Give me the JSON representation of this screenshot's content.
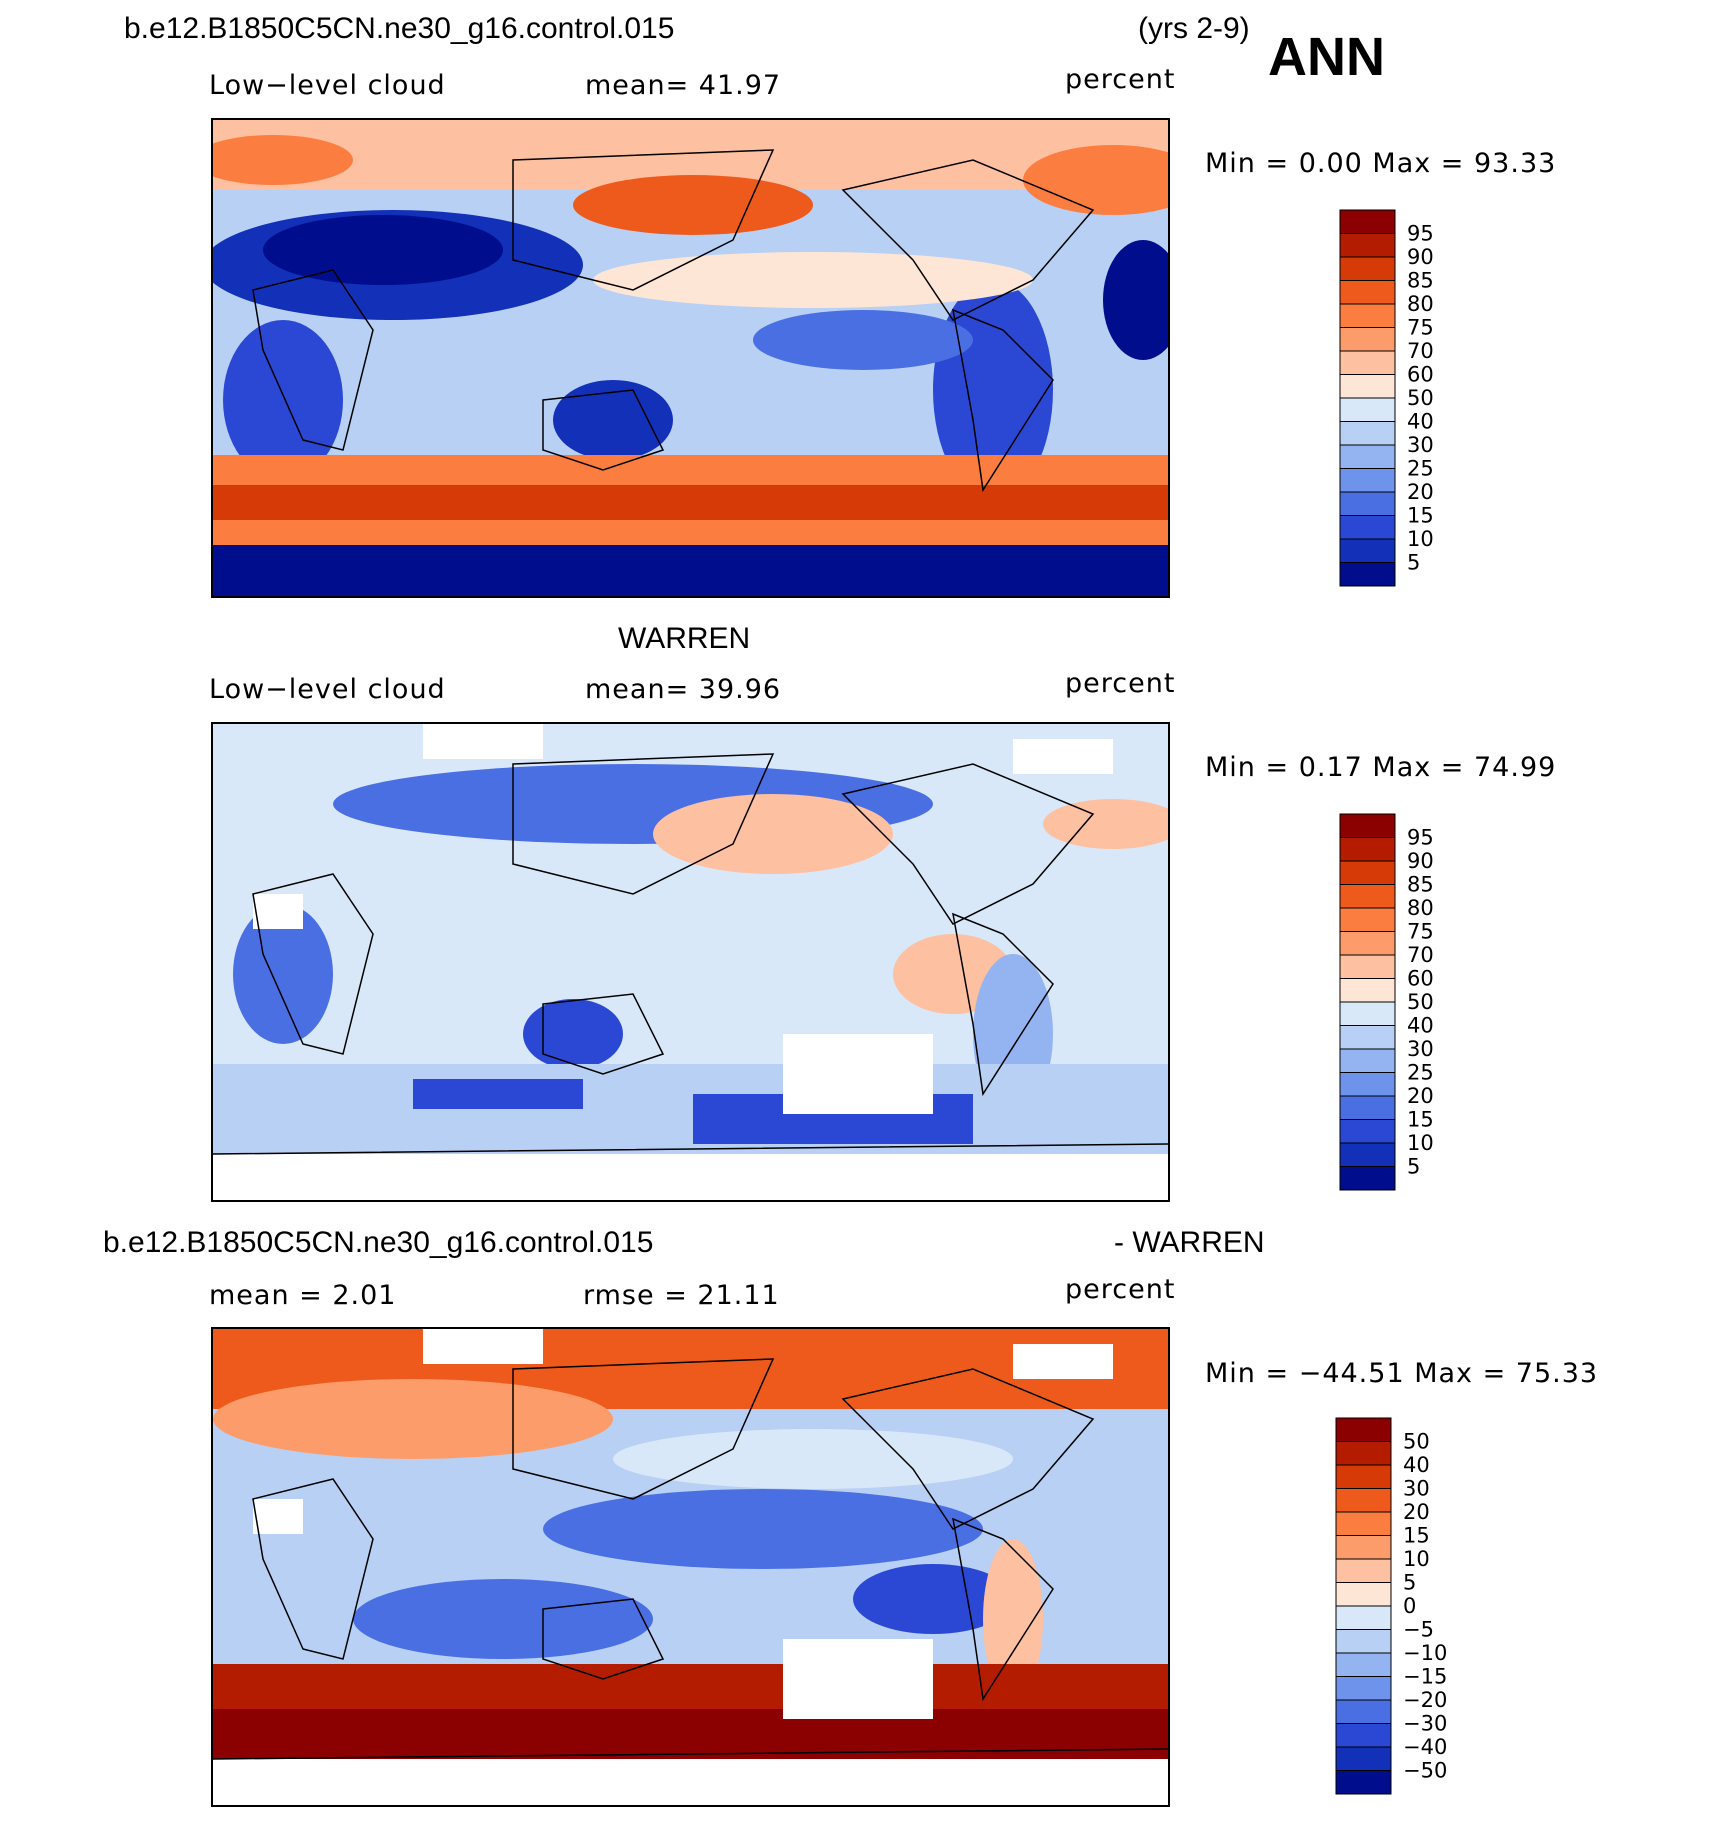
{
  "header": {
    "case_name": "b.e12.B1850C5CN.ne30_g16.control.015",
    "years": "(yrs 2-9)",
    "season": "ANN"
  },
  "panels": [
    {
      "id": "model",
      "heading": "",
      "left_label": "Low−level cloud",
      "mid_label": "mean=   41.97",
      "units": "percent",
      "minmax": "Min  =     0.00  Max  =    93.33"
    },
    {
      "id": "obs",
      "heading": "WARREN",
      "left_label": "Low−level cloud",
      "mid_label": "mean=   39.96",
      "units": "percent",
      "minmax": "Min  =     0.17  Max  =    74.99"
    },
    {
      "id": "diff",
      "heading_left": "b.e12.B1850C5CN.ne30_g16.control.015",
      "heading_right": "- WARREN",
      "left_label": "mean  =    2.01",
      "mid_label": "rmse  =   21.11",
      "units": "percent",
      "minmax": "Min  = −44.51  Max  =    75.33"
    }
  ],
  "chart_data": [
    {
      "type": "heatmap",
      "title": "b.e12.B1850C5CN.ne30_g16.control.015 (yrs 2-9) ANN",
      "variable": "Low-level cloud",
      "units": "percent",
      "mean": 41.97,
      "min": 0.0,
      "max": 93.33,
      "colorbar_levels": [
        95,
        90,
        85,
        80,
        75,
        70,
        60,
        50,
        40,
        30,
        25,
        20,
        15,
        10,
        5
      ],
      "colorbar_colors": [
        "#8b0000",
        "#b41c00",
        "#d63a06",
        "#ee5a1c",
        "#fb7d40",
        "#fc9c6a",
        "#fdc0a0",
        "#fee6d6",
        "#d9e8f8",
        "#b7d0f4",
        "#93b4f0",
        "#6d94ea",
        "#4a6fe2",
        "#2a48d4",
        "#1230b8",
        "#000d8c"
      ],
      "note": "Gridded global map (lon/lat) of annual low-level cloud fraction; individual grid values not labelled."
    },
    {
      "type": "heatmap",
      "title": "WARREN",
      "variable": "Low-level cloud",
      "units": "percent",
      "mean": 39.96,
      "min": 0.17,
      "max": 74.99,
      "colorbar_levels": [
        95,
        90,
        85,
        80,
        75,
        70,
        60,
        50,
        40,
        30,
        25,
        20,
        15,
        10,
        5
      ],
      "colorbar_colors": [
        "#8b0000",
        "#b41c00",
        "#d63a06",
        "#ee5a1c",
        "#fb7d40",
        "#fc9c6a",
        "#fdc0a0",
        "#fee6d6",
        "#d9e8f8",
        "#b7d0f4",
        "#93b4f0",
        "#6d94ea",
        "#4a6fe2",
        "#2a48d4",
        "#1230b8",
        "#000d8c"
      ],
      "note": "Observed (Warren) low-level cloud climatology; white = missing data."
    },
    {
      "type": "heatmap",
      "title": "b.e12.B1850C5CN.ne30_g16.control.015 - WARREN",
      "variable": "Low-level cloud difference",
      "units": "percent",
      "mean": 2.01,
      "rmse": 21.11,
      "min": -44.51,
      "max": 75.33,
      "colorbar_levels": [
        "50",
        "40",
        "30",
        "20",
        "15",
        "10",
        "5",
        "0",
        "−5",
        "−10",
        "−15",
        "−20",
        "−30",
        "−40",
        "−50"
      ],
      "colorbar_colors": [
        "#8b0000",
        "#b41c00",
        "#d63a06",
        "#ee5a1c",
        "#fb7d40",
        "#fc9c6a",
        "#fdc0a0",
        "#fee6d6",
        "#d9e8f8",
        "#b7d0f4",
        "#93b4f0",
        "#6d94ea",
        "#4a6fe2",
        "#2a48d4",
        "#1230b8",
        "#000d8c"
      ],
      "note": "Model minus observations; white = missing observations."
    }
  ]
}
